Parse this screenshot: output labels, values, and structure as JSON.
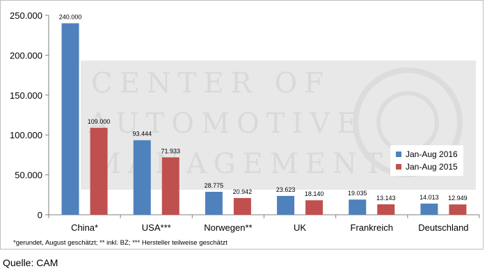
{
  "colors": {
    "series_2016": "#4f81bd",
    "series_2015": "#c0504d",
    "watermark_band": "#e8e8e8",
    "watermark_text": "#d6d6d6",
    "axis": "#7f7f7f"
  },
  "chart_data": {
    "type": "bar",
    "categories": [
      "China*",
      "USA***",
      "Norwegen**",
      "UK",
      "Frankreich",
      "Deutschland"
    ],
    "series": [
      {
        "name": "Jan-Aug 2016",
        "values": [
          240000,
          93444,
          28775,
          23623,
          19035,
          14013
        ],
        "labels": [
          "240.000",
          "93.444",
          "28.775",
          "23.623",
          "19.035",
          "14.013"
        ]
      },
      {
        "name": "Jan-Aug 2015",
        "values": [
          109000,
          71933,
          20942,
          18140,
          13143,
          12949
        ],
        "labels": [
          "109.000",
          "71.933",
          "20.942",
          "18.140",
          "13.143",
          "12.949"
        ]
      }
    ],
    "ylim": [
      0,
      250000
    ],
    "yticks": [
      0,
      50000,
      100000,
      150000,
      200000,
      250000
    ],
    "ytick_labels": [
      "0",
      "50.000",
      "100.000",
      "150.000",
      "200.000",
      "250.000"
    ],
    "legend_position": "right",
    "grid": false
  },
  "legend": [
    {
      "label": "Jan-Aug 2016"
    },
    {
      "label": "Jan-Aug 2015"
    }
  ],
  "watermark": {
    "line1": "CENTER OF",
    "line2": "AUTOMOTIVE",
    "line3": "MANAGEMENT"
  },
  "footnote": "*gerundet, August geschätzt; ** inkl. BZ; *** Hersteller teilweise geschätzt",
  "source": "Quelle: CAM"
}
